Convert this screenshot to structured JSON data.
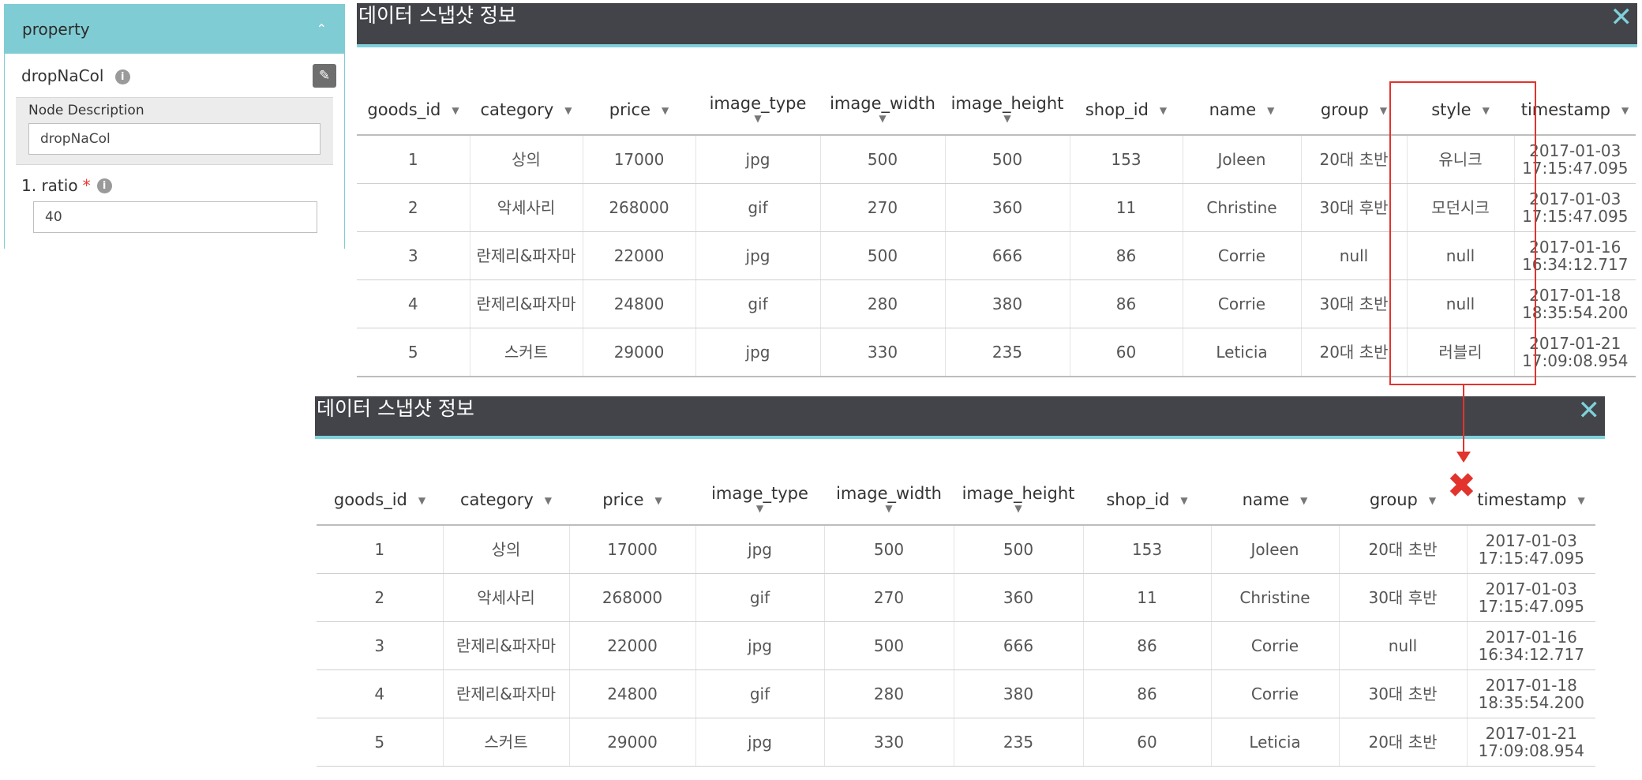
{
  "panel": {
    "title": "property",
    "collapse_icon": "chevron-up-icon",
    "node_name": "dropNaCol",
    "edit_icon": "edit-icon",
    "description_label": "Node Description",
    "description_value": "dropNaCol",
    "ratio_label": "1. ratio",
    "required_mark": "*",
    "ratio_value": "40"
  },
  "dialog_before": {
    "title": "데이터 스냅샷 정보",
    "close_icon": "close-icon",
    "columns": [
      "goods_id",
      "category",
      "price",
      "image_type",
      "image_width",
      "image_height",
      "shop_id",
      "name",
      "group",
      "style",
      "timestamp"
    ],
    "rows": [
      [
        "1",
        "상의",
        "17000",
        "jpg",
        "500",
        "500",
        "153",
        "Joleen",
        "20대 초반",
        "유니크",
        "2017-01-03 17:15:47.095"
      ],
      [
        "2",
        "악세사리",
        "268000",
        "gif",
        "270",
        "360",
        "11",
        "Christine",
        "30대 후반",
        "모던시크",
        "2017-01-03 17:15:47.095"
      ],
      [
        "3",
        "란제리&파자마",
        "22000",
        "jpg",
        "500",
        "666",
        "86",
        "Corrie",
        "null",
        "null",
        "2017-01-16 16:34:12.717"
      ],
      [
        "4",
        "란제리&파자마",
        "24800",
        "gif",
        "280",
        "380",
        "86",
        "Corrie",
        "30대 초반",
        "null",
        "2017-01-18 18:35:54.200"
      ],
      [
        "5",
        "스커트",
        "29000",
        "jpg",
        "330",
        "235",
        "60",
        "Leticia",
        "20대 초반",
        "러블리",
        "2017-01-21 17:09:08.954"
      ]
    ]
  },
  "dialog_after": {
    "title": "데이터 스냅샷 정보",
    "close_icon": "close-icon",
    "columns": [
      "goods_id",
      "category",
      "price",
      "image_type",
      "image_width",
      "image_height",
      "shop_id",
      "name",
      "group",
      "timestamp"
    ],
    "rows": [
      [
        "1",
        "상의",
        "17000",
        "jpg",
        "500",
        "500",
        "153",
        "Joleen",
        "20대 초반",
        "2017-01-03 17:15:47.095"
      ],
      [
        "2",
        "악세사리",
        "268000",
        "gif",
        "270",
        "360",
        "11",
        "Christine",
        "30대 후반",
        "2017-01-03 17:15:47.095"
      ],
      [
        "3",
        "란제리&파자마",
        "22000",
        "jpg",
        "500",
        "666",
        "86",
        "Corrie",
        "null",
        "2017-01-16 16:34:12.717"
      ],
      [
        "4",
        "란제리&파자마",
        "24800",
        "gif",
        "280",
        "380",
        "86",
        "Corrie",
        "30대 초반",
        "2017-01-18 18:35:54.200"
      ],
      [
        "5",
        "스커트",
        "29000",
        "jpg",
        "330",
        "235",
        "60",
        "Leticia",
        "20대 초반",
        "2017-01-21 17:09:08.954"
      ]
    ]
  },
  "annotation": {
    "highlight_color": "#e2332d",
    "removed_marker": "✖"
  }
}
